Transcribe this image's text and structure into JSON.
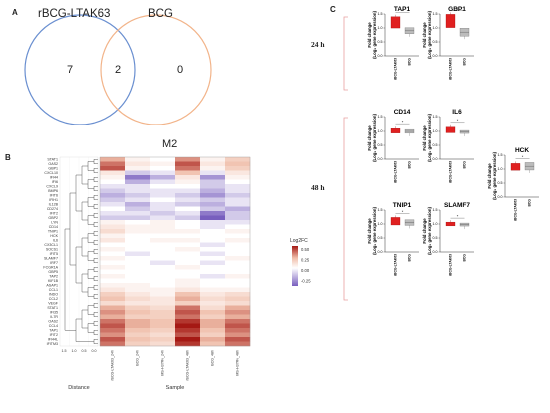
{
  "panels": {
    "a": "A",
    "b": "B",
    "c": "C"
  },
  "venn": {
    "left_label": "rBCG-LTAK63",
    "right_label": "BCG",
    "left_only": "7",
    "overlap": "2",
    "right_only": "0",
    "left_color": "#6a8fd0",
    "right_color": "#f2b48a"
  },
  "heatmap": {
    "title": "M2",
    "x_axis_label": "Sample",
    "dendro_axis_label": "Distance",
    "dendro_ticks": [
      "1.5",
      "1.0",
      "0.5",
      "0.0"
    ],
    "legend_title": "Log2FC",
    "legend_ticks": [
      "0.50",
      "0.25",
      "0.00",
      "-0.25"
    ],
    "samples": [
      "rBCG-LTAK63_24h",
      "BCG_24h",
      "MS-H37Rv_24h",
      "rBCG-LTAK63_48h",
      "BCG_48h",
      "MS-H37Rv_48h"
    ],
    "genes": [
      "STAT1",
      "OAS2",
      "GBP1",
      "CXCL10",
      "IFI44",
      "IFI6",
      "CXCL9",
      "BMP6",
      "IFIT6",
      "IFIH1",
      "IL12B",
      "CD274",
      "IFIT2",
      "GBP2",
      "LYN",
      "CD14",
      "TNIP1",
      "HCK",
      "IL6",
      "CX3CL1",
      "SOCS1",
      "IFIT5",
      "SLAMF7",
      "IRF7",
      "FCGR1A",
      "GBP5",
      "TAP2",
      "KIF1B",
      "ASAP1",
      "CCL1",
      "INDO",
      "CCL2",
      "VEGF",
      "STAT1",
      "IFI35",
      "IL7R",
      "OAS2",
      "CCL4",
      "TAP1",
      "IFIT2",
      "IFI44L",
      "IFITM3"
    ],
    "values": [
      [
        0.3,
        0.05,
        0.0,
        0.35,
        0.05,
        0.2
      ],
      [
        0.4,
        0.1,
        0.05,
        0.45,
        0.1,
        0.25
      ],
      [
        0.45,
        0.05,
        0.0,
        0.4,
        0.05,
        0.2
      ],
      [
        0.1,
        -0.1,
        -0.05,
        0.25,
        -0.05,
        0.1
      ],
      [
        0.05,
        -0.25,
        -0.15,
        0.1,
        -0.2,
        0.05
      ],
      [
        0.0,
        -0.15,
        -0.05,
        0.05,
        -0.1,
        0.0
      ],
      [
        -0.05,
        -0.05,
        0.0,
        0.0,
        -0.1,
        -0.05
      ],
      [
        -0.1,
        -0.05,
        -0.05,
        -0.05,
        -0.15,
        -0.05
      ],
      [
        -0.15,
        -0.1,
        -0.05,
        -0.1,
        -0.2,
        -0.1
      ],
      [
        -0.1,
        -0.05,
        0.0,
        -0.05,
        -0.1,
        -0.05
      ],
      [
        -0.05,
        -0.15,
        -0.05,
        -0.1,
        -0.15,
        -0.05
      ],
      [
        0.0,
        -0.1,
        -0.05,
        0.0,
        -0.1,
        -0.15
      ],
      [
        -0.05,
        -0.05,
        -0.1,
        -0.05,
        -0.25,
        -0.1
      ],
      [
        -0.1,
        -0.1,
        -0.05,
        -0.1,
        -0.3,
        -0.1
      ],
      [
        0.05,
        0.0,
        0.05,
        0.0,
        -0.05,
        -0.05
      ],
      [
        0.1,
        0.05,
        0.05,
        0.0,
        -0.05,
        0.0
      ],
      [
        0.15,
        0.05,
        0.05,
        0.05,
        0.0,
        0.05
      ],
      [
        0.05,
        0.0,
        0.0,
        0.0,
        0.0,
        0.0
      ],
      [
        0.1,
        0.0,
        0.05,
        0.05,
        0.0,
        0.05
      ],
      [
        0.0,
        0.0,
        0.0,
        0.0,
        -0.05,
        0.0
      ],
      [
        0.05,
        0.0,
        0.0,
        0.05,
        0.0,
        0.0
      ],
      [
        0.0,
        -0.05,
        0.0,
        0.0,
        -0.05,
        0.0
      ],
      [
        0.05,
        0.0,
        0.0,
        0.0,
        0.0,
        0.05
      ],
      [
        0.0,
        0.0,
        -0.05,
        0.0,
        -0.05,
        0.0
      ],
      [
        0.05,
        0.0,
        0.0,
        0.05,
        0.0,
        0.0
      ],
      [
        0.0,
        0.0,
        0.0,
        0.0,
        0.0,
        0.0
      ],
      [
        0.05,
        0.0,
        0.0,
        0.0,
        -0.05,
        0.05
      ],
      [
        0.0,
        0.0,
        0.0,
        0.05,
        0.0,
        0.0
      ],
      [
        0.05,
        0.05,
        0.0,
        0.05,
        0.0,
        0.0
      ],
      [
        0.1,
        0.05,
        0.05,
        0.1,
        0.05,
        0.05
      ],
      [
        0.2,
        0.1,
        0.05,
        0.25,
        0.1,
        0.15
      ],
      [
        0.25,
        0.15,
        0.1,
        0.3,
        0.15,
        0.2
      ],
      [
        0.15,
        0.1,
        0.1,
        0.2,
        0.1,
        0.15
      ],
      [
        0.3,
        0.2,
        0.15,
        0.4,
        0.15,
        0.3
      ],
      [
        0.35,
        0.25,
        0.2,
        0.45,
        0.25,
        0.35
      ],
      [
        0.3,
        0.2,
        0.2,
        0.4,
        0.2,
        0.3
      ],
      [
        0.4,
        0.3,
        0.25,
        0.5,
        0.3,
        0.4
      ],
      [
        0.45,
        0.3,
        0.25,
        0.55,
        0.3,
        0.45
      ],
      [
        0.4,
        0.25,
        0.2,
        0.5,
        0.25,
        0.4
      ],
      [
        0.35,
        0.2,
        0.15,
        0.45,
        0.2,
        0.35
      ],
      [
        0.45,
        0.25,
        0.2,
        0.55,
        0.3,
        0.45
      ],
      [
        0.4,
        0.2,
        0.15,
        0.5,
        0.25,
        0.4
      ]
    ]
  },
  "panel_c": {
    "time_24h": "24 h",
    "time_48h": "48 h",
    "y_label_1": "Fold change",
    "y_label_2": "(Log₂ gene expression)",
    "x_categories": [
      "rBCG-LTAK63",
      "BCG"
    ],
    "significance_mark": "*",
    "plots": [
      {
        "gene": "TAP1",
        "yticks": [
          "1.5",
          "1.0",
          "0.5",
          "0.0"
        ],
        "ylim": [
          0,
          1.5
        ],
        "rbcg": 1.2,
        "bcg": 0.9
      },
      {
        "gene": "GBP1",
        "yticks": [
          "1.5",
          "1.0",
          "0.5",
          "0.0"
        ],
        "ylim": [
          0,
          1.5
        ],
        "rbcg": 1.25,
        "bcg": 0.85
      },
      {
        "gene": "CD14",
        "yticks": [
          "1.5",
          "1.0",
          "0.5",
          "0.0"
        ],
        "ylim": [
          0,
          1.5
        ],
        "rbcg": 1.02,
        "bcg": 1.0
      },
      {
        "gene": "IL6",
        "yticks": [
          "1.5",
          "1.0",
          "0.5",
          "0.0"
        ],
        "ylim": [
          0,
          1.5
        ],
        "rbcg": 1.05,
        "bcg": 0.98
      },
      {
        "gene": "HCK",
        "yticks": [
          "1.5",
          "1.0",
          "0.5",
          "0.0"
        ],
        "ylim": [
          0,
          1.5
        ],
        "rbcg": 1.08,
        "bcg": 1.1
      },
      {
        "gene": "TNIP1",
        "yticks": [
          "1.5",
          "1.0",
          "0.5",
          "0.0"
        ],
        "ylim": [
          0,
          1.5
        ],
        "rbcg": 1.1,
        "bcg": 1.05
      },
      {
        "gene": "SLAMF7",
        "yticks": [
          "1.5",
          "1.0",
          "0.5",
          "0.0"
        ],
        "ylim": [
          0,
          1.5
        ],
        "rbcg": 1.0,
        "bcg": 0.98
      }
    ]
  },
  "colors": {
    "red": "#e02020",
    "gray": "#bcbcbc",
    "bracket": "#e8a0a0"
  }
}
